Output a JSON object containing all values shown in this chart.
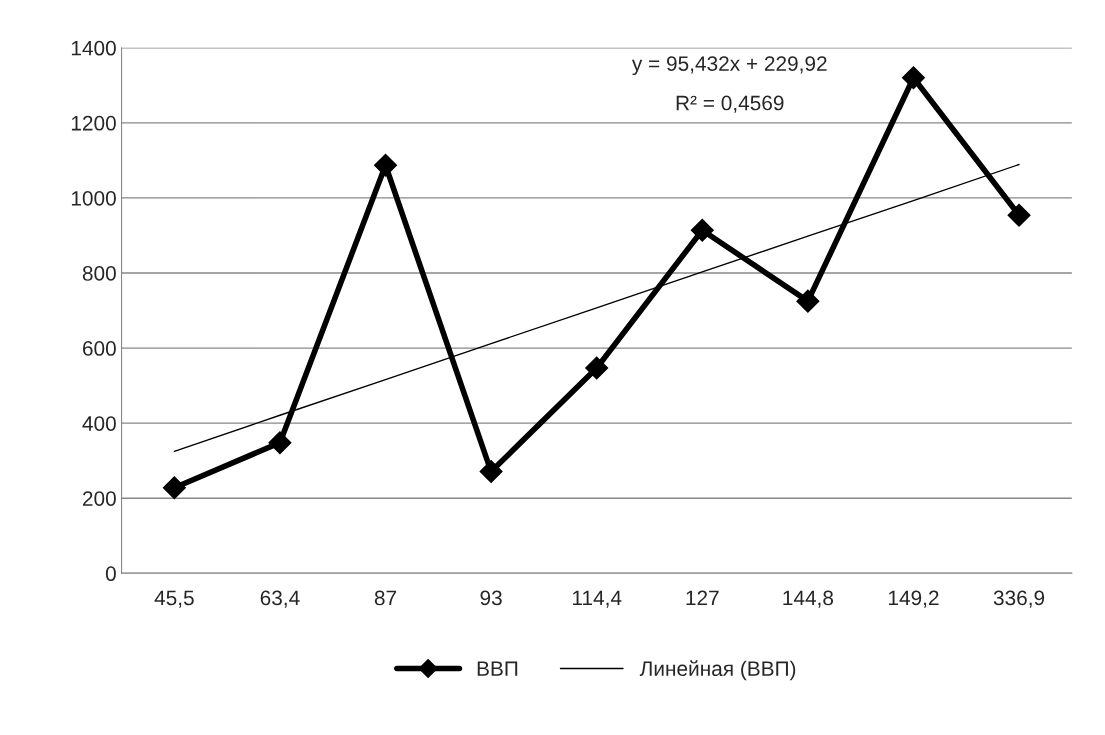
{
  "chart_data": {
    "type": "line",
    "categories": [
      "45,5",
      "63,4",
      "87",
      "93",
      "114,4",
      "127",
      "144,8",
      "149,2",
      "336,9"
    ],
    "series": [
      {
        "name": "ВВП",
        "color": "#000000",
        "marker": "diamond",
        "values": [
          228,
          348,
          1087,
          271,
          547,
          914,
          725,
          1320,
          954
        ]
      },
      {
        "name": "Линейная (ВВП)",
        "color": "#000000",
        "marker": "none",
        "values": [
          325,
          421,
          516,
          612,
          707,
          803,
          898,
          993,
          1089
        ]
      }
    ],
    "ylim": [
      0,
      1400
    ],
    "yticks": [
      0,
      200,
      400,
      600,
      800,
      1000,
      1200,
      1400
    ],
    "grid": "y",
    "legend": "bottom",
    "annotations": [
      "y = 95,432x + 229,92",
      "R² = 0,4569"
    ]
  }
}
